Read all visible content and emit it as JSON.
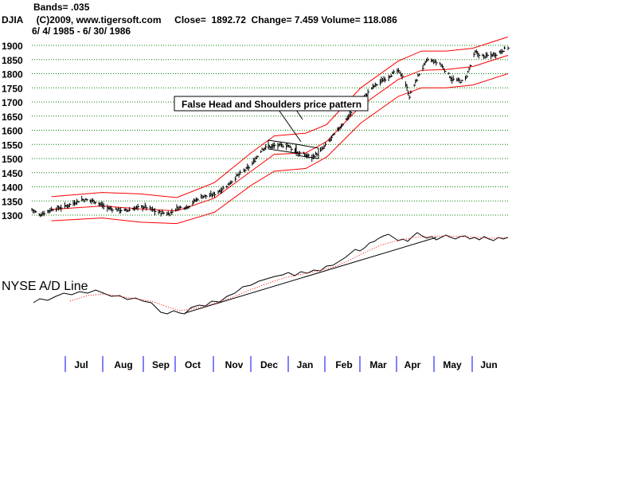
{
  "header": {
    "bands": "Bands= .035",
    "line2": "DJIA     (C)2009, www.tigersoft.com     Close=  1892.72  Change= 7.459 Volume= 118.086",
    "dates": "6/ 4/ 1985 - 6/ 30/ 1986"
  },
  "annotation": "False Head and Shoulders price pattern",
  "ad_label": "NYSE A/D Line",
  "colors": {
    "price": "#000000",
    "bands": "#ff0000",
    "grid": "#008000",
    "month_sep": "#0000ff",
    "ad_ma": "#ff0000"
  },
  "chart_data": {
    "type": "line",
    "title": "DJIA",
    "ylim": [
      1275,
      1925
    ],
    "yticks": [
      "1300",
      "1350",
      "1400",
      "1450",
      "1500",
      "1550",
      "1600",
      "1650",
      "1700",
      "1750",
      "1800",
      "1850",
      "1900"
    ],
    "months": [
      "Jul",
      "Aug",
      "Sep",
      "Oct",
      "Nov",
      "Dec",
      "Jan",
      "Feb",
      "Mar",
      "Apr",
      "May",
      "Jun"
    ],
    "close_path": [
      [
        "1985-06-04",
        1320
      ],
      [
        "1985-06-10",
        1300
      ],
      [
        "1985-06-20",
        1320
      ],
      [
        "1985-07-01",
        1330
      ],
      [
        "1985-07-15",
        1355
      ],
      [
        "1985-07-25",
        1350
      ],
      [
        "1985-08-05",
        1325
      ],
      [
        "1985-08-20",
        1315
      ],
      [
        "1985-08-28",
        1325
      ],
      [
        "1985-09-05",
        1330
      ],
      [
        "1985-09-15",
        1310
      ],
      [
        "1985-09-25",
        1305
      ],
      [
        "1985-10-01",
        1325
      ],
      [
        "1985-10-10",
        1330
      ],
      [
        "1985-10-20",
        1365
      ],
      [
        "1985-10-30",
        1370
      ],
      [
        "1985-11-10",
        1400
      ],
      [
        "1985-11-20",
        1440
      ],
      [
        "1985-12-01",
        1475
      ],
      [
        "1985-12-10",
        1535
      ],
      [
        "1985-12-20",
        1545
      ],
      [
        "1985-12-31",
        1546
      ],
      [
        "1986-01-08",
        1520
      ],
      [
        "1986-01-20",
        1505
      ],
      [
        "1986-01-28",
        1530
      ],
      [
        "1986-02-10",
        1600
      ],
      [
        "1986-02-20",
        1655
      ],
      [
        "1986-03-01",
        1700
      ],
      [
        "1986-03-10",
        1750
      ],
      [
        "1986-03-20",
        1780
      ],
      [
        "1986-03-31",
        1810
      ],
      [
        "1986-04-05",
        1790
      ],
      [
        "1986-04-10",
        1720
      ],
      [
        "1986-04-18",
        1800
      ],
      [
        "1986-04-25",
        1850
      ],
      [
        "1986-05-05",
        1835
      ],
      [
        "1986-05-15",
        1780
      ],
      [
        "1986-05-25",
        1770
      ],
      [
        "1986-06-03",
        1875
      ],
      [
        "1986-06-10",
        1860
      ],
      [
        "1986-06-20",
        1870
      ],
      [
        "1986-06-30",
        1893
      ]
    ],
    "upper_band": [
      [
        "1985-06-20",
        1365
      ],
      [
        "1985-08-01",
        1380
      ],
      [
        "1985-09-01",
        1375
      ],
      [
        "1985-10-01",
        1362
      ],
      [
        "1985-11-01",
        1415
      ],
      [
        "1985-12-01",
        1520
      ],
      [
        "1985-12-20",
        1580
      ],
      [
        "1986-01-15",
        1590
      ],
      [
        "1986-02-01",
        1620
      ],
      [
        "1986-03-01",
        1750
      ],
      [
        "1986-04-01",
        1845
      ],
      [
        "1986-04-20",
        1880
      ],
      [
        "1986-05-10",
        1880
      ],
      [
        "1986-06-01",
        1890
      ],
      [
        "1986-06-30",
        1930
      ]
    ],
    "middle_band": [
      [
        "1985-06-20",
        1320
      ],
      [
        "1985-08-01",
        1332
      ],
      [
        "1985-09-01",
        1322
      ],
      [
        "1985-10-01",
        1315
      ],
      [
        "1985-11-01",
        1360
      ],
      [
        "1985-12-01",
        1455
      ],
      [
        "1985-12-20",
        1515
      ],
      [
        "1986-01-15",
        1520
      ],
      [
        "1986-02-01",
        1560
      ],
      [
        "1986-03-01",
        1685
      ],
      [
        "1986-04-01",
        1780
      ],
      [
        "1986-04-20",
        1812
      ],
      [
        "1986-05-10",
        1815
      ],
      [
        "1986-06-01",
        1825
      ],
      [
        "1986-06-30",
        1865
      ]
    ],
    "lower_band": [
      [
        "1985-06-20",
        1280
      ],
      [
        "1985-08-01",
        1290
      ],
      [
        "1985-09-01",
        1275
      ],
      [
        "1985-10-01",
        1270
      ],
      [
        "1985-11-01",
        1310
      ],
      [
        "1985-12-01",
        1405
      ],
      [
        "1985-12-20",
        1455
      ],
      [
        "1986-01-15",
        1465
      ],
      [
        "1986-02-01",
        1505
      ],
      [
        "1986-03-01",
        1625
      ],
      [
        "1986-04-01",
        1720
      ],
      [
        "1986-04-20",
        1750
      ],
      [
        "1986-05-10",
        1750
      ],
      [
        "1986-06-01",
        1760
      ],
      [
        "1986-06-30",
        1800
      ]
    ]
  }
}
